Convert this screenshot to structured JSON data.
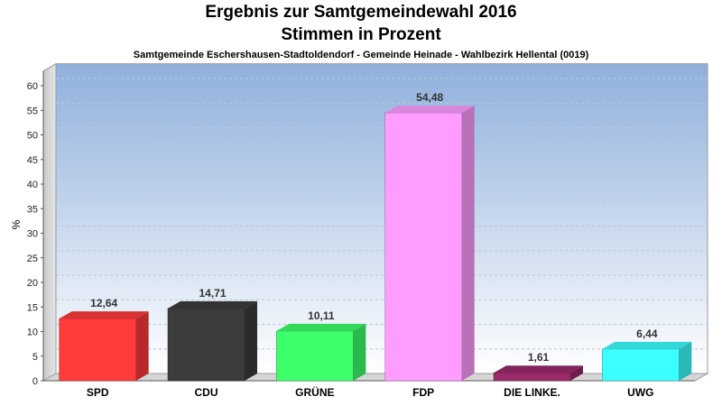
{
  "header": {
    "title_line1": "Ergebnis zur Samtgemeindewahl 2016",
    "title_line2": "Stimmen in Prozent",
    "subtitle": "Samtgemeinde Eschershausen-Stadtoldendorf - Gemeinde Heinade - Wahlbezirk Hellental (0019)"
  },
  "chart_data": {
    "type": "bar",
    "title": "Ergebnis zur Samtgemeindewahl 2016",
    "subtitle": "Stimmen in Prozent",
    "xlabel": "",
    "ylabel": "%",
    "ylim": [
      0,
      63
    ],
    "yticks": [
      0,
      5,
      10,
      15,
      20,
      25,
      30,
      35,
      40,
      45,
      50,
      55,
      60
    ],
    "grid": true,
    "categories": [
      "SPD",
      "CDU",
      "GRÜNE",
      "FDP",
      "DIE LINKE.",
      "UWG"
    ],
    "values": [
      12.64,
      14.71,
      10.11,
      54.48,
      1.61,
      6.44
    ],
    "value_labels": [
      "12,64",
      "14,71",
      "10,11",
      "54,48",
      "1,61",
      "6,44"
    ],
    "colors": [
      "#ff3b3b",
      "#3c3c3c",
      "#3cff6a",
      "#ff9cff",
      "#9a2a6a",
      "#3cffff"
    ]
  }
}
